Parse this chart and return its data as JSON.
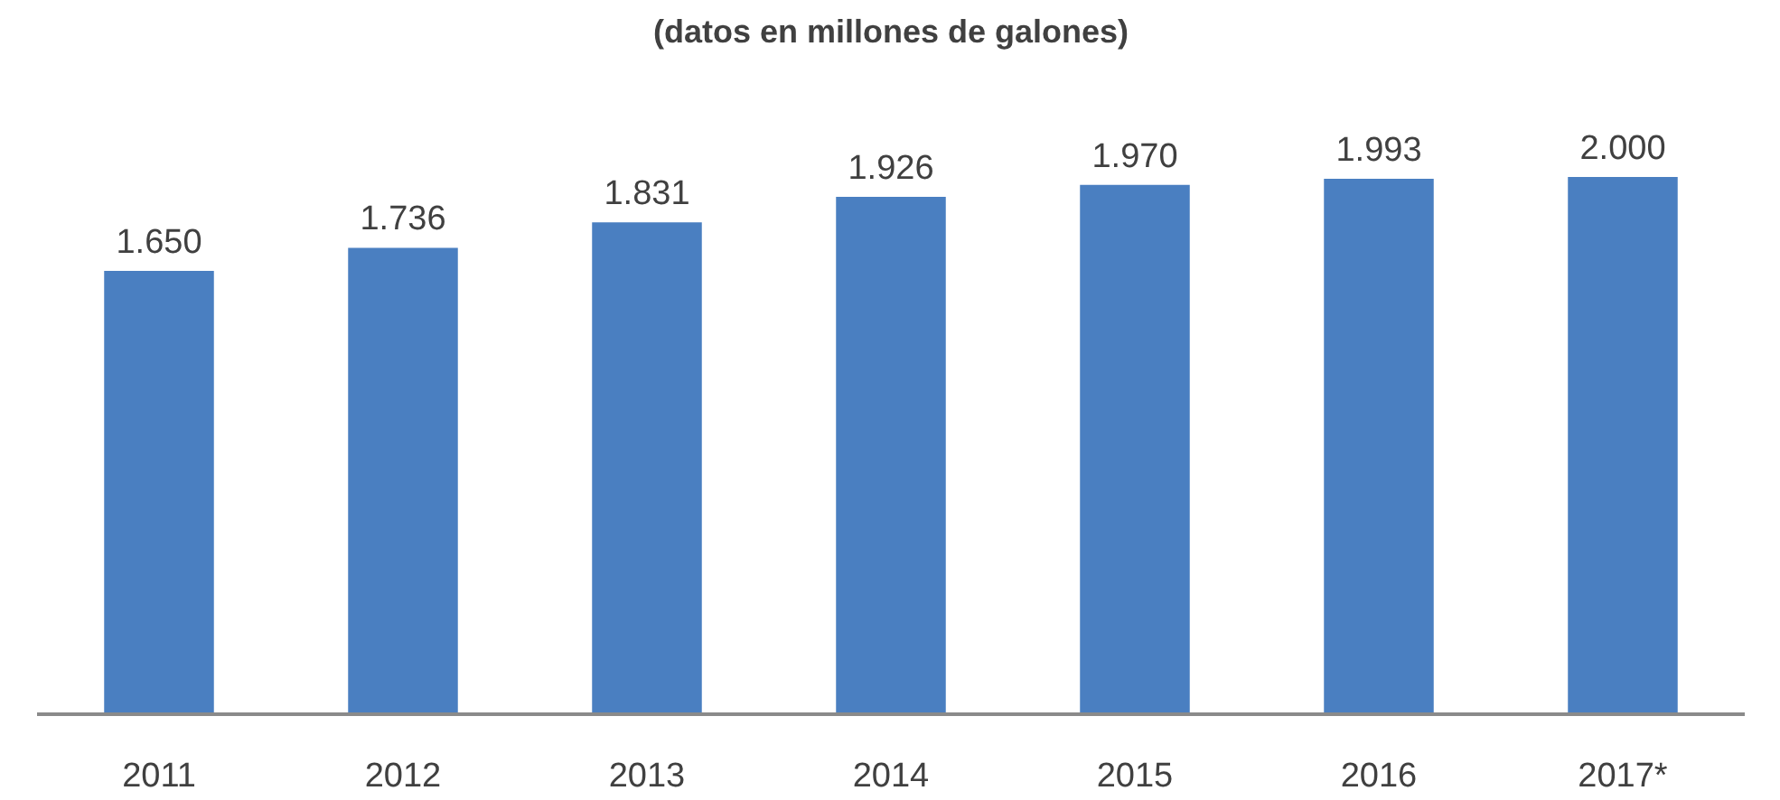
{
  "chart_data": {
    "type": "bar",
    "title": "(datos en millones de galones)",
    "categories": [
      "2011",
      "2012",
      "2013",
      "2014",
      "2015",
      "2016",
      "2017*"
    ],
    "values": [
      1650,
      1736,
      1831,
      1926,
      1970,
      1993,
      2000
    ],
    "value_labels": [
      "1.650",
      "1.736",
      "1.831",
      "1.926",
      "1.970",
      "1.993",
      "2.000"
    ],
    "color": "#4a7fc1",
    "grid": false
  }
}
